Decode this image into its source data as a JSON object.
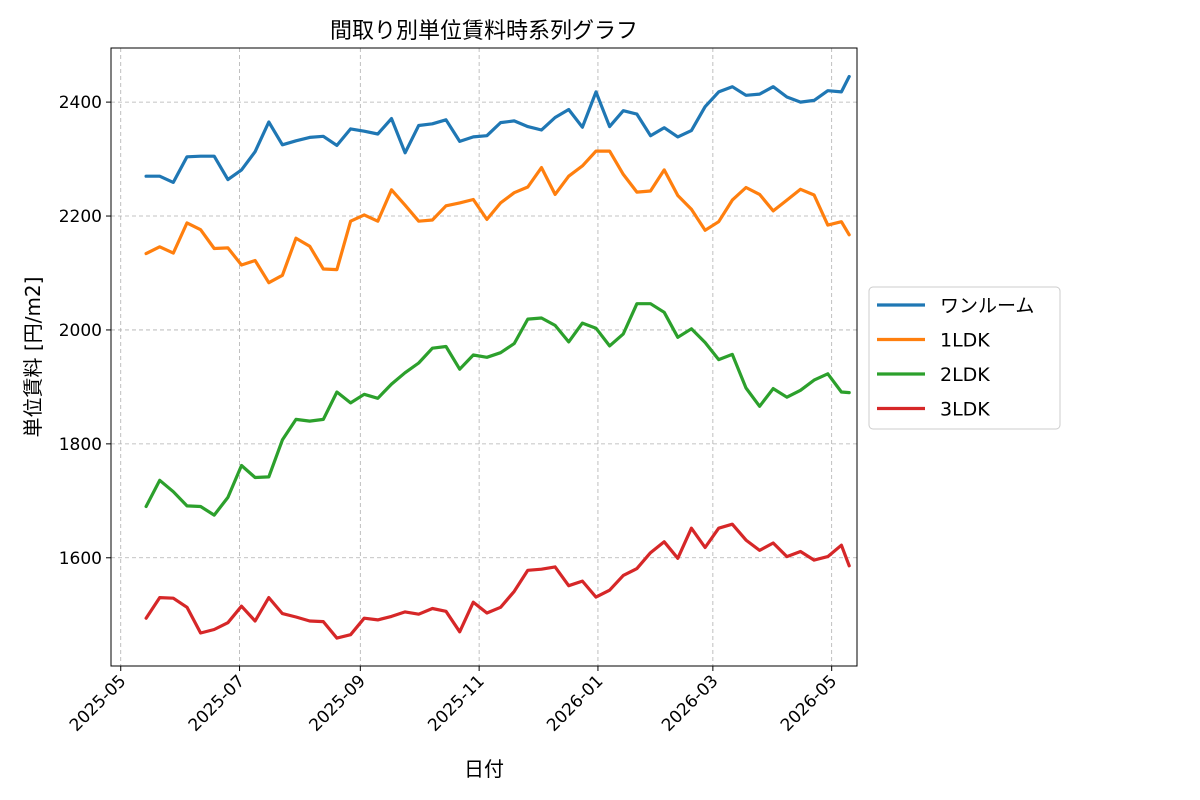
{
  "chart_data": {
    "type": "line",
    "title": "間取り別単位賃料時系列グラフ",
    "xlabel": "日付",
    "ylabel": "単位賃料 [円/m2]",
    "x_ticks": [
      "2025-05",
      "2025-07",
      "2025-09",
      "2025-11",
      "2026-01",
      "2026-03",
      "2026-05"
    ],
    "y_ticks": [
      1600,
      1800,
      2000,
      2200,
      2400
    ],
    "xlim": [
      "2025-04-26",
      "2026-05-14"
    ],
    "ylim": [
      1410,
      2495
    ],
    "grid": true,
    "legend_position": "center-right-outside",
    "x": [
      "2025-05-14",
      "2025-05-21",
      "2025-05-28",
      "2025-06-04",
      "2025-06-11",
      "2025-06-18",
      "2025-06-25",
      "2025-07-02",
      "2025-07-09",
      "2025-07-16",
      "2025-07-23",
      "2025-07-30",
      "2025-08-06",
      "2025-08-13",
      "2025-08-20",
      "2025-08-27",
      "2025-09-03",
      "2025-09-10",
      "2025-09-17",
      "2025-09-24",
      "2025-10-01",
      "2025-10-08",
      "2025-10-15",
      "2025-10-22",
      "2025-10-29",
      "2025-11-05",
      "2025-11-12",
      "2025-11-19",
      "2025-11-26",
      "2025-12-03",
      "2025-12-10",
      "2025-12-17",
      "2025-12-24",
      "2025-12-31",
      "2026-01-07",
      "2026-01-14",
      "2026-01-21",
      "2026-01-28",
      "2026-02-04",
      "2026-02-11",
      "2026-02-18",
      "2026-02-25",
      "2026-03-04",
      "2026-03-11",
      "2026-03-18",
      "2026-03-25",
      "2026-04-01",
      "2026-04-08",
      "2026-04-15",
      "2026-04-22",
      "2026-04-29",
      "2026-05-06",
      "2026-05-10"
    ],
    "series": [
      {
        "name": "ワンルーム",
        "color": "#1f77b4",
        "values": [
          2270,
          2270,
          2259,
          2304,
          2305,
          2305,
          2264,
          2281,
          2313,
          2365,
          2325,
          2332,
          2338,
          2340,
          2324,
          2353,
          2349,
          2344,
          2371,
          2311,
          2359,
          2362,
          2369,
          2331,
          2339,
          2341,
          2364,
          2367,
          2357,
          2351,
          2373,
          2387,
          2356,
          2418,
          2357,
          2385,
          2379,
          2341,
          2355,
          2339,
          2350,
          2392,
          2418,
          2427,
          2412,
          2414,
          2427,
          2409,
          2400,
          2403,
          2420,
          2418,
          2445
        ]
      },
      {
        "name": "1LDK",
        "color": "#ff7f0e",
        "values": [
          2134,
          2146,
          2135,
          2188,
          2176,
          2143,
          2144,
          2114,
          2122,
          2083,
          2096,
          2161,
          2147,
          2107,
          2106,
          2191,
          2202,
          2191,
          2246,
          2219,
          2191,
          2193,
          2218,
          2223,
          2229,
          2194,
          2223,
          2241,
          2251,
          2285,
          2238,
          2270,
          2288,
          2314,
          2314,
          2273,
          2242,
          2244,
          2281,
          2236,
          2212,
          2175,
          2190,
          2228,
          2250,
          2238,
          2209,
          2228,
          2247,
          2237,
          2184,
          2190,
          2167
        ]
      },
      {
        "name": "2LDK",
        "color": "#2ca02c",
        "values": [
          1690,
          1736,
          1716,
          1691,
          1690,
          1675,
          1706,
          1762,
          1741,
          1742,
          1807,
          1843,
          1840,
          1843,
          1891,
          1872,
          1887,
          1880,
          1905,
          1925,
          1942,
          1968,
          1971,
          1931,
          1956,
          1952,
          1960,
          1976,
          2019,
          2021,
          2008,
          1979,
          2012,
          2003,
          1972,
          1993,
          2046,
          2046,
          2031,
          1987,
          2002,
          1978,
          1948,
          1957,
          1898,
          1866,
          1897,
          1882,
          1894,
          1912,
          1923,
          1891,
          1890
        ]
      },
      {
        "name": "3LDK",
        "color": "#d62728",
        "values": [
          1494,
          1530,
          1529,
          1513,
          1468,
          1474,
          1486,
          1515,
          1489,
          1530,
          1502,
          1496,
          1489,
          1488,
          1459,
          1465,
          1494,
          1491,
          1497,
          1505,
          1501,
          1511,
          1506,
          1470,
          1522,
          1503,
          1513,
          1541,
          1578,
          1580,
          1584,
          1551,
          1559,
          1531,
          1543,
          1569,
          1581,
          1609,
          1628,
          1599,
          1652,
          1618,
          1652,
          1659,
          1631,
          1613,
          1626,
          1602,
          1611,
          1596,
          1602,
          1622,
          1586
        ]
      }
    ]
  }
}
